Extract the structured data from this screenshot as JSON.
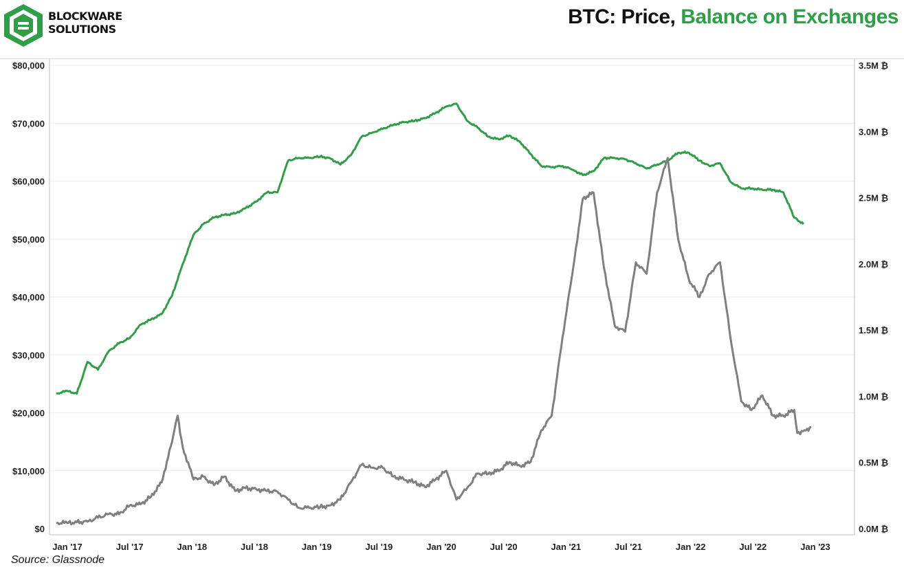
{
  "header": {
    "brand_line1": "BLOCKWARE",
    "brand_line2": "SOLUTIONS",
    "title_prefix": "BTC: Price, ",
    "title_highlight": "Balance on Exchanges"
  },
  "footer": {
    "source": "Source: Glassnode"
  },
  "colors": {
    "price": "#7f7f7f",
    "balance": "#2e9e47",
    "grid": "#ececec",
    "logo": "#2e9e47"
  },
  "chart_data": {
    "type": "line",
    "x_tick_labels": [
      "Jan '17",
      "Jul '17",
      "Jan '18",
      "Jul '18",
      "Jan '19",
      "Jul '19",
      "Jan '20",
      "Jul '20",
      "Jan '21",
      "Jul '21",
      "Jan '22",
      "Jul '22",
      "Jan '23"
    ],
    "y_left": {
      "min": 0,
      "max": 80000,
      "tick_values": [
        0,
        10000,
        20000,
        30000,
        40000,
        50000,
        60000,
        70000,
        80000
      ],
      "tick_labels": [
        "$0",
        "$10,000",
        "$20,000",
        "$30,000",
        "$40,000",
        "$50,000",
        "$60,000",
        "$70,000",
        "$80,000"
      ]
    },
    "y_right": {
      "min": 0,
      "max": 3500000,
      "tick_values": [
        0,
        500000,
        1000000,
        1500000,
        2000000,
        2500000,
        3000000,
        3500000
      ],
      "tick_labels": [
        "0.0M ₿",
        "0.5M ₿",
        "1.0M ₿",
        "1.5M ₿",
        "2.0M ₿",
        "2.5M ₿",
        "3.0M ₿",
        "3.5M ₿"
      ]
    },
    "x_range": [
      "2017-01-01",
      "2023-01-01"
    ],
    "grid": true,
    "series": [
      {
        "axis": "right",
        "points": [
          [
            "2017-01-01",
            1020000
          ],
          [
            "2017-02-01",
            1040000
          ],
          [
            "2017-03-01",
            1020000
          ],
          [
            "2017-04-01",
            1260000
          ],
          [
            "2017-05-01",
            1200000
          ],
          [
            "2017-06-01",
            1340000
          ],
          [
            "2017-07-01",
            1400000
          ],
          [
            "2017-08-01",
            1440000
          ],
          [
            "2017-09-01",
            1540000
          ],
          [
            "2017-10-01",
            1580000
          ],
          [
            "2017-11-01",
            1620000
          ],
          [
            "2017-12-01",
            1760000
          ],
          [
            "2018-01-01",
            2000000
          ],
          [
            "2018-02-01",
            2220000
          ],
          [
            "2018-03-01",
            2300000
          ],
          [
            "2018-04-01",
            2350000
          ],
          [
            "2018-05-01",
            2370000
          ],
          [
            "2018-06-01",
            2380000
          ],
          [
            "2018-07-01",
            2420000
          ],
          [
            "2018-08-01",
            2470000
          ],
          [
            "2018-09-01",
            2540000
          ],
          [
            "2018-10-01",
            2540000
          ],
          [
            "2018-11-01",
            2780000
          ],
          [
            "2018-12-01",
            2800000
          ],
          [
            "2019-01-01",
            2800000
          ],
          [
            "2019-02-01",
            2810000
          ],
          [
            "2019-03-01",
            2800000
          ],
          [
            "2019-04-01",
            2750000
          ],
          [
            "2019-05-01",
            2820000
          ],
          [
            "2019-06-01",
            2960000
          ],
          [
            "2019-07-01",
            2990000
          ],
          [
            "2019-08-01",
            3020000
          ],
          [
            "2019-09-01",
            3050000
          ],
          [
            "2019-10-01",
            3070000
          ],
          [
            "2019-11-01",
            3080000
          ],
          [
            "2019-12-01",
            3100000
          ],
          [
            "2020-01-01",
            3140000
          ],
          [
            "2020-02-01",
            3190000
          ],
          [
            "2020-03-01",
            3210000
          ],
          [
            "2020-04-01",
            3080000
          ],
          [
            "2020-05-01",
            3030000
          ],
          [
            "2020-06-01",
            2960000
          ],
          [
            "2020-07-01",
            2940000
          ],
          [
            "2020-08-01",
            2970000
          ],
          [
            "2020-09-01",
            2920000
          ],
          [
            "2020-10-01",
            2830000
          ],
          [
            "2020-11-01",
            2740000
          ],
          [
            "2020-12-01",
            2730000
          ],
          [
            "2021-01-01",
            2740000
          ],
          [
            "2021-02-01",
            2710000
          ],
          [
            "2021-03-01",
            2670000
          ],
          [
            "2021-04-01",
            2700000
          ],
          [
            "2021-05-01",
            2800000
          ],
          [
            "2021-06-01",
            2800000
          ],
          [
            "2021-07-01",
            2790000
          ],
          [
            "2021-08-01",
            2760000
          ],
          [
            "2021-09-01",
            2720000
          ],
          [
            "2021-10-01",
            2750000
          ],
          [
            "2021-11-01",
            2780000
          ],
          [
            "2021-12-01",
            2840000
          ],
          [
            "2022-01-01",
            2840000
          ],
          [
            "2022-02-01",
            2780000
          ],
          [
            "2022-03-01",
            2740000
          ],
          [
            "2022-04-01",
            2760000
          ],
          [
            "2022-05-01",
            2620000
          ],
          [
            "2022-06-01",
            2570000
          ],
          [
            "2022-07-01",
            2570000
          ],
          [
            "2022-08-01",
            2560000
          ],
          [
            "2022-09-01",
            2560000
          ],
          [
            "2022-10-01",
            2540000
          ],
          [
            "2022-11-01",
            2350000
          ],
          [
            "2022-11-28",
            2300000
          ]
        ]
      },
      {
        "axis": "left",
        "points": [
          [
            "2017-01-01",
            1000
          ],
          [
            "2017-02-01",
            1000
          ],
          [
            "2017-03-01",
            1100
          ],
          [
            "2017-04-01",
            1200
          ],
          [
            "2017-05-01",
            1900
          ],
          [
            "2017-06-01",
            2500
          ],
          [
            "2017-07-01",
            2500
          ],
          [
            "2017-08-01",
            4000
          ],
          [
            "2017-09-01",
            4200
          ],
          [
            "2017-10-01",
            5500
          ],
          [
            "2017-11-01",
            8000
          ],
          [
            "2017-12-01",
            15000
          ],
          [
            "2017-12-17",
            19500
          ],
          [
            "2018-01-01",
            14000
          ],
          [
            "2018-02-01",
            8500
          ],
          [
            "2018-03-01",
            9000
          ],
          [
            "2018-04-01",
            7500
          ],
          [
            "2018-05-01",
            9000
          ],
          [
            "2018-06-01",
            6500
          ],
          [
            "2018-07-01",
            7000
          ],
          [
            "2018-08-01",
            6800
          ],
          [
            "2018-09-01",
            6500
          ],
          [
            "2018-10-01",
            6400
          ],
          [
            "2018-11-01",
            5000
          ],
          [
            "2018-12-01",
            3600
          ],
          [
            "2019-01-01",
            3600
          ],
          [
            "2019-02-01",
            3700
          ],
          [
            "2019-03-01",
            4000
          ],
          [
            "2019-04-01",
            5000
          ],
          [
            "2019-05-01",
            8000
          ],
          [
            "2019-06-01",
            11000
          ],
          [
            "2019-07-01",
            10500
          ],
          [
            "2019-08-01",
            10500
          ],
          [
            "2019-09-01",
            9000
          ],
          [
            "2019-10-01",
            8500
          ],
          [
            "2019-11-01",
            8000
          ],
          [
            "2019-12-01",
            7200
          ],
          [
            "2020-01-01",
            8500
          ],
          [
            "2020-02-01",
            10000
          ],
          [
            "2020-03-01",
            5000
          ],
          [
            "2020-04-01",
            7000
          ],
          [
            "2020-05-01",
            9500
          ],
          [
            "2020-06-01",
            9500
          ],
          [
            "2020-07-01",
            10000
          ],
          [
            "2020-08-01",
            11500
          ],
          [
            "2020-09-01",
            10800
          ],
          [
            "2020-10-01",
            11500
          ],
          [
            "2020-11-01",
            17000
          ],
          [
            "2020-12-01",
            19500
          ],
          [
            "2021-01-01",
            33000
          ],
          [
            "2021-02-01",
            45000
          ],
          [
            "2021-03-01",
            57000
          ],
          [
            "2021-04-01",
            58000
          ],
          [
            "2021-05-01",
            45000
          ],
          [
            "2021-06-01",
            35000
          ],
          [
            "2021-07-01",
            34000
          ],
          [
            "2021-08-01",
            46000
          ],
          [
            "2021-09-01",
            44000
          ],
          [
            "2021-10-01",
            58000
          ],
          [
            "2021-11-01",
            64000
          ],
          [
            "2021-12-01",
            50000
          ],
          [
            "2022-01-01",
            43000
          ],
          [
            "2022-02-01",
            40000
          ],
          [
            "2022-03-01",
            44000
          ],
          [
            "2022-04-01",
            46000
          ],
          [
            "2022-05-01",
            33000
          ],
          [
            "2022-06-01",
            22000
          ],
          [
            "2022-07-01",
            20500
          ],
          [
            "2022-08-01",
            23000
          ],
          [
            "2022-09-01",
            19500
          ],
          [
            "2022-10-01",
            19500
          ],
          [
            "2022-11-01",
            20500
          ],
          [
            "2022-11-10",
            16500
          ],
          [
            "2022-12-01",
            17000
          ],
          [
            "2022-12-20",
            17500
          ]
        ]
      }
    ]
  }
}
